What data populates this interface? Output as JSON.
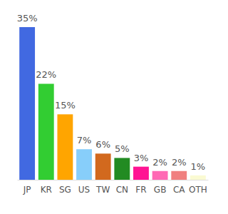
{
  "chart_data": {
    "type": "bar",
    "categories": [
      "JP",
      "KR",
      "SG",
      "US",
      "TW",
      "CN",
      "FR",
      "GB",
      "CA",
      "OTH"
    ],
    "values": [
      35,
      22,
      15,
      7,
      6,
      5,
      3,
      2,
      2,
      1
    ],
    "value_labels": [
      "35%",
      "22%",
      "15%",
      "7%",
      "6%",
      "5%",
      "3%",
      "2%",
      "2%",
      "1%"
    ],
    "colors": [
      "#4169e1",
      "#32cd32",
      "#ffa500",
      "#87cefa",
      "#d2691e",
      "#228b22",
      "#ff1493",
      "#ff69b4",
      "#f08080",
      "#fafad2"
    ],
    "data_labels": true,
    "tick_labels": "x"
  }
}
